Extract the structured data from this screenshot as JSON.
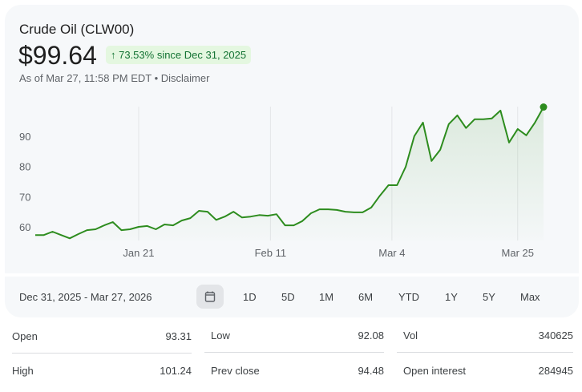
{
  "header": {
    "title": "Crude Oil (CLW00)",
    "price": "$99.64",
    "change": "↑ 73.53% since Dec 31, 2025",
    "as_of": "As of Mar 27, 11:58 PM EDT • Disclaimer"
  },
  "range": {
    "label": "Dec 31, 2025 - Mar 27, 2026",
    "calendar_icon": "calendar-icon",
    "periods": [
      "1D",
      "5D",
      "1M",
      "6M",
      "YTD",
      "1Y",
      "5Y",
      "Max"
    ]
  },
  "stats": [
    {
      "label": "Open",
      "value": "93.31"
    },
    {
      "label": "High",
      "value": "101.24"
    },
    {
      "label": "Low",
      "value": "92.08"
    },
    {
      "label": "Prev close",
      "value": "94.48"
    },
    {
      "label": "Vol",
      "value": "340625"
    },
    {
      "label": "Open interest",
      "value": "284945"
    }
  ],
  "colors": {
    "line": "#2d8c1e",
    "badge_bg": "#e4f7e0",
    "badge_text": "#137333"
  },
  "chart_data": {
    "type": "area",
    "title": "Crude Oil (CLW00)",
    "ylim": [
      56,
      100
    ],
    "yticks": [
      60,
      70,
      80,
      90
    ],
    "xticks": [
      {
        "label": "Jan 21",
        "index": 12.0
      },
      {
        "label": "Feb 11",
        "index": 27.3
      },
      {
        "label": "Mar 4",
        "index": 41.4
      },
      {
        "label": "Mar 25",
        "index": 56.0
      }
    ],
    "values": [
      57.3,
      57.3,
      58.4,
      57.3,
      56.2,
      57.6,
      58.9,
      59.2,
      60.5,
      61.6,
      58.9,
      59.2,
      60.0,
      60.3,
      59.2,
      60.8,
      60.5,
      62.1,
      62.9,
      65.3,
      65.0,
      62.3,
      63.4,
      65.0,
      63.1,
      63.4,
      63.9,
      63.7,
      64.2,
      60.5,
      60.5,
      61.9,
      64.5,
      65.8,
      65.8,
      65.6,
      65.0,
      64.8,
      64.8,
      66.4,
      70.3,
      73.8,
      73.8,
      79.9,
      90.0,
      94.5,
      81.8,
      85.5,
      94.0,
      96.9,
      92.7,
      95.6,
      95.6,
      95.9,
      98.5,
      87.9,
      92.4,
      90.3,
      94.5,
      99.64
    ]
  }
}
